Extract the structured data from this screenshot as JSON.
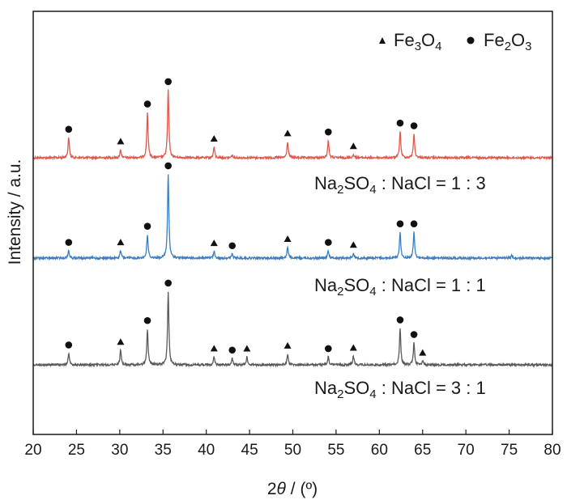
{
  "chart_data": {
    "type": "line",
    "xlabel_prefix": "2",
    "xlabel_symbol": "θ",
    "xlabel_unit": " / (º)",
    "ylabel": "Intensity / a.u.",
    "xlim": [
      20,
      80
    ],
    "xticks": [
      "20",
      "25",
      "30",
      "35",
      "40",
      "45",
      "50",
      "55",
      "60",
      "65",
      "70",
      "75",
      "80"
    ],
    "y_ticks_shown": false,
    "legend": {
      "position": "top-right",
      "entries": [
        {
          "marker": "triangle",
          "label_main": "Fe",
          "sub1": "3",
          "mid": "O",
          "sub2": "4"
        },
        {
          "marker": "circle",
          "label_main": "Fe",
          "sub1": "2",
          "mid": "O",
          "sub2": "3"
        }
      ]
    },
    "series": [
      {
        "label_parts": {
          "a": "Na",
          "sub1": "2",
          "b": "SO",
          "sub2": "4",
          "c": " : NaCl = 1 : 3"
        },
        "color": "#e0584d",
        "peaks": [
          {
            "x": 24.1,
            "h": 0.3
          },
          {
            "x": 30.1,
            "h": 0.12
          },
          {
            "x": 33.2,
            "h": 0.67
          },
          {
            "x": 35.6,
            "h": 1.0
          },
          {
            "x": 40.9,
            "h": 0.16
          },
          {
            "x": 43.0,
            "h": 0.04
          },
          {
            "x": 49.4,
            "h": 0.24
          },
          {
            "x": 54.1,
            "h": 0.26
          },
          {
            "x": 57.0,
            "h": 0.05
          },
          {
            "x": 62.4,
            "h": 0.39
          },
          {
            "x": 64.0,
            "h": 0.35
          }
        ],
        "markers": [
          {
            "x": 24.1,
            "type": "circle"
          },
          {
            "x": 30.1,
            "type": "triangle"
          },
          {
            "x": 33.2,
            "type": "circle"
          },
          {
            "x": 35.6,
            "type": "circle"
          },
          {
            "x": 40.9,
            "type": "triangle"
          },
          {
            "x": 49.4,
            "type": "triangle"
          },
          {
            "x": 54.1,
            "type": "circle"
          },
          {
            "x": 57.0,
            "type": "triangle"
          },
          {
            "x": 62.4,
            "type": "circle"
          },
          {
            "x": 64.0,
            "type": "circle"
          }
        ]
      },
      {
        "label_parts": {
          "a": "Na",
          "sub1": "2",
          "b": "SO",
          "sub2": "4",
          "c": " : NaCl = 1 : 1"
        },
        "color": "#3a7fc1",
        "peaks": [
          {
            "x": 24.1,
            "h": 0.09
          },
          {
            "x": 30.1,
            "h": 0.09
          },
          {
            "x": 33.2,
            "h": 0.28
          },
          {
            "x": 35.6,
            "h": 1.0
          },
          {
            "x": 40.9,
            "h": 0.08
          },
          {
            "x": 43.0,
            "h": 0.05
          },
          {
            "x": 49.4,
            "h": 0.13
          },
          {
            "x": 54.1,
            "h": 0.09
          },
          {
            "x": 57.0,
            "h": 0.06
          },
          {
            "x": 62.4,
            "h": 0.31
          },
          {
            "x": 64.0,
            "h": 0.31
          },
          {
            "x": 75.3,
            "h": 0.03
          }
        ],
        "markers": [
          {
            "x": 24.1,
            "type": "circle"
          },
          {
            "x": 30.1,
            "type": "triangle"
          },
          {
            "x": 33.2,
            "type": "circle"
          },
          {
            "x": 35.6,
            "type": "circle"
          },
          {
            "x": 40.9,
            "type": "triangle"
          },
          {
            "x": 43.0,
            "type": "circle"
          },
          {
            "x": 49.4,
            "type": "triangle"
          },
          {
            "x": 54.1,
            "type": "circle"
          },
          {
            "x": 57.0,
            "type": "triangle"
          },
          {
            "x": 62.4,
            "type": "circle"
          },
          {
            "x": 64.0,
            "type": "circle"
          }
        ]
      },
      {
        "label_parts": {
          "a": "Na",
          "sub1": "2",
          "b": "SO",
          "sub2": "4",
          "c": " : NaCl = 3 : 1"
        },
        "color": "#5a5a5a",
        "peaks": [
          {
            "x": 24.1,
            "h": 0.16
          },
          {
            "x": 30.1,
            "h": 0.2
          },
          {
            "x": 33.2,
            "h": 0.49
          },
          {
            "x": 35.6,
            "h": 1.0
          },
          {
            "x": 40.9,
            "h": 0.11
          },
          {
            "x": 43.0,
            "h": 0.09
          },
          {
            "x": 44.7,
            "h": 0.11
          },
          {
            "x": 49.4,
            "h": 0.15
          },
          {
            "x": 54.1,
            "h": 0.11
          },
          {
            "x": 57.0,
            "h": 0.12
          },
          {
            "x": 62.4,
            "h": 0.5
          },
          {
            "x": 64.0,
            "h": 0.3
          },
          {
            "x": 65.0,
            "h": 0.05
          }
        ],
        "markers": [
          {
            "x": 24.1,
            "type": "circle"
          },
          {
            "x": 30.1,
            "type": "triangle"
          },
          {
            "x": 33.2,
            "type": "circle"
          },
          {
            "x": 35.6,
            "type": "circle"
          },
          {
            "x": 40.9,
            "type": "triangle"
          },
          {
            "x": 43.0,
            "type": "circle"
          },
          {
            "x": 44.7,
            "type": "triangle"
          },
          {
            "x": 49.4,
            "type": "triangle"
          },
          {
            "x": 54.1,
            "type": "circle"
          },
          {
            "x": 57.0,
            "type": "triangle"
          },
          {
            "x": 62.4,
            "type": "circle"
          },
          {
            "x": 64.0,
            "type": "circle"
          },
          {
            "x": 65.0,
            "type": "triangle"
          }
        ]
      }
    ]
  }
}
